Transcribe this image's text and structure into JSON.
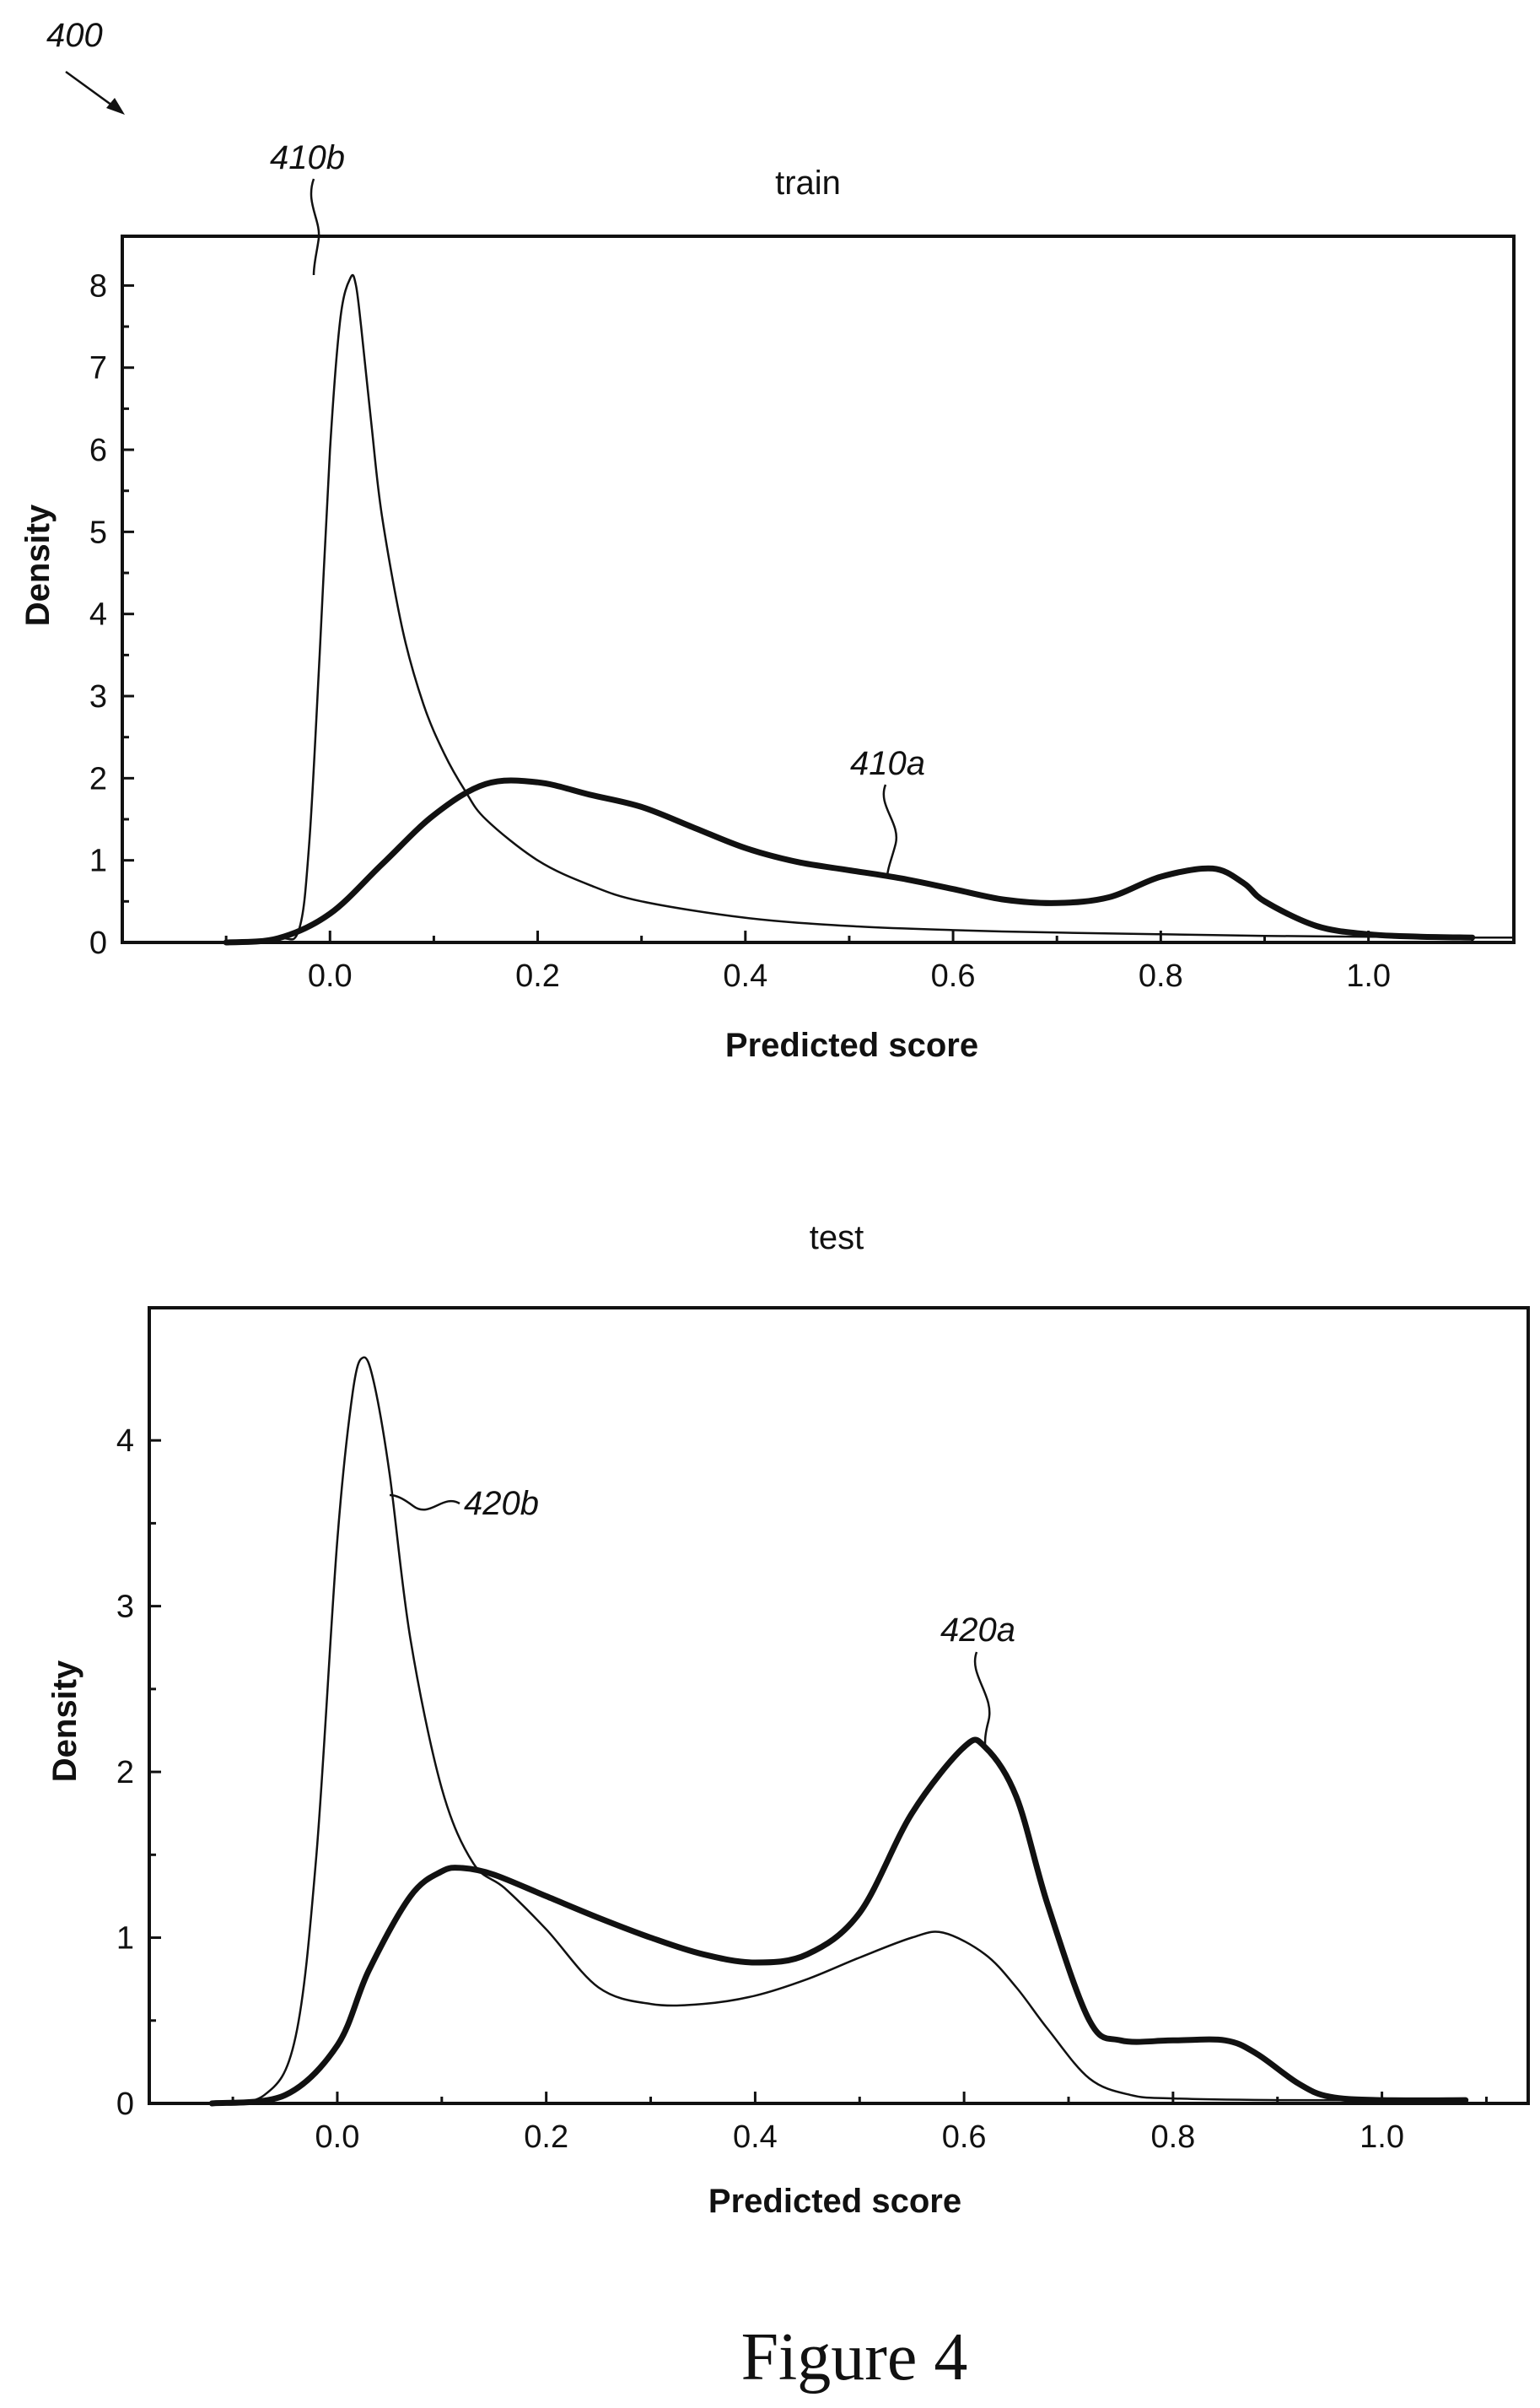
{
  "figure": {
    "ref_number": "400",
    "caption": "Figure 4"
  },
  "chart_data": [
    {
      "type": "line",
      "title": "train",
      "xlabel": "Predicted score",
      "ylabel": "Density",
      "xlim": [
        -0.2,
        1.14
      ],
      "ylim": [
        0,
        8.6
      ],
      "xticks": [
        0.0,
        0.2,
        0.4,
        0.6,
        0.8,
        1.0
      ],
      "xtick_labels": [
        "0.0",
        "0.2",
        "0.4",
        "0.6",
        "0.8",
        "1.0"
      ],
      "yticks": [
        0,
        1,
        2,
        3,
        4,
        5,
        6,
        7,
        8
      ],
      "ytick_labels": [
        "0",
        "1",
        "2",
        "3",
        "4",
        "5",
        "6",
        "7",
        "8"
      ],
      "grid": false,
      "series": [
        {
          "ref": "410b",
          "style": "thin",
          "x": [
            -0.1,
            -0.05,
            -0.03,
            -0.02,
            -0.01,
            0.0,
            0.01,
            0.02,
            0.025,
            0.03,
            0.04,
            0.05,
            0.07,
            0.09,
            0.11,
            0.13,
            0.15,
            0.2,
            0.25,
            0.3,
            0.4,
            0.5,
            0.6,
            0.7,
            0.8,
            0.9,
            1.0,
            1.1,
            1.14
          ],
          "y": [
            0,
            0.05,
            0.15,
            1.2,
            3.5,
            6.0,
            7.6,
            8.1,
            8.0,
            7.5,
            6.3,
            5.2,
            3.8,
            2.9,
            2.3,
            1.85,
            1.5,
            1.0,
            0.7,
            0.5,
            0.3,
            0.2,
            0.15,
            0.12,
            0.1,
            0.08,
            0.07,
            0.06,
            0.06
          ]
        },
        {
          "ref": "410a",
          "style": "thick",
          "x": [
            -0.1,
            -0.05,
            0.0,
            0.05,
            0.1,
            0.15,
            0.2,
            0.25,
            0.3,
            0.35,
            0.4,
            0.45,
            0.5,
            0.55,
            0.6,
            0.65,
            0.7,
            0.75,
            0.8,
            0.85,
            0.88,
            0.9,
            0.95,
            1.0,
            1.05,
            1.1
          ],
          "y": [
            0,
            0.05,
            0.35,
            0.95,
            1.55,
            1.93,
            1.95,
            1.8,
            1.65,
            1.4,
            1.15,
            0.98,
            0.88,
            0.78,
            0.65,
            0.52,
            0.48,
            0.55,
            0.8,
            0.9,
            0.72,
            0.5,
            0.2,
            0.1,
            0.07,
            0.06
          ]
        }
      ]
    },
    {
      "type": "line",
      "title": "test",
      "xlabel": "Predicted score",
      "ylabel": "Density",
      "xlim": [
        -0.18,
        1.14
      ],
      "ylim": [
        0,
        4.8
      ],
      "xticks": [
        0.0,
        0.2,
        0.4,
        0.6,
        0.8,
        1.0
      ],
      "xtick_labels": [
        "0.0",
        "0.2",
        "0.4",
        "0.6",
        "0.8",
        "1.0"
      ],
      "yticks": [
        0,
        1,
        2,
        3,
        4
      ],
      "ytick_labels": [
        "0",
        "1",
        "2",
        "3",
        "4"
      ],
      "grid": false,
      "series": [
        {
          "ref": "420b",
          "style": "thin",
          "x": [
            -0.12,
            -0.07,
            -0.04,
            -0.02,
            0.0,
            0.015,
            0.025,
            0.035,
            0.05,
            0.07,
            0.1,
            0.13,
            0.16,
            0.2,
            0.25,
            0.3,
            0.35,
            0.4,
            0.45,
            0.5,
            0.55,
            0.58,
            0.62,
            0.65,
            0.68,
            0.72,
            0.76,
            0.8,
            0.9,
            1.08
          ],
          "y": [
            0,
            0.05,
            0.4,
            1.5,
            3.4,
            4.3,
            4.5,
            4.35,
            3.8,
            2.8,
            1.9,
            1.45,
            1.3,
            1.05,
            0.7,
            0.6,
            0.6,
            0.65,
            0.75,
            0.88,
            1.0,
            1.03,
            0.9,
            0.7,
            0.45,
            0.15,
            0.05,
            0.03,
            0.02,
            0.02
          ]
        },
        {
          "ref": "420a",
          "style": "thick",
          "x": [
            -0.12,
            -0.05,
            0.0,
            0.03,
            0.07,
            0.1,
            0.12,
            0.15,
            0.2,
            0.25,
            0.3,
            0.35,
            0.4,
            0.45,
            0.5,
            0.55,
            0.6,
            0.62,
            0.65,
            0.68,
            0.72,
            0.75,
            0.8,
            0.85,
            0.88,
            0.92,
            0.95,
            1.0,
            1.08
          ],
          "y": [
            0,
            0.05,
            0.35,
            0.8,
            1.25,
            1.4,
            1.42,
            1.38,
            1.25,
            1.12,
            1.0,
            0.9,
            0.85,
            0.9,
            1.15,
            1.75,
            2.15,
            2.15,
            1.85,
            1.2,
            0.5,
            0.38,
            0.38,
            0.38,
            0.3,
            0.12,
            0.04,
            0.02,
            0.02
          ]
        }
      ]
    }
  ]
}
